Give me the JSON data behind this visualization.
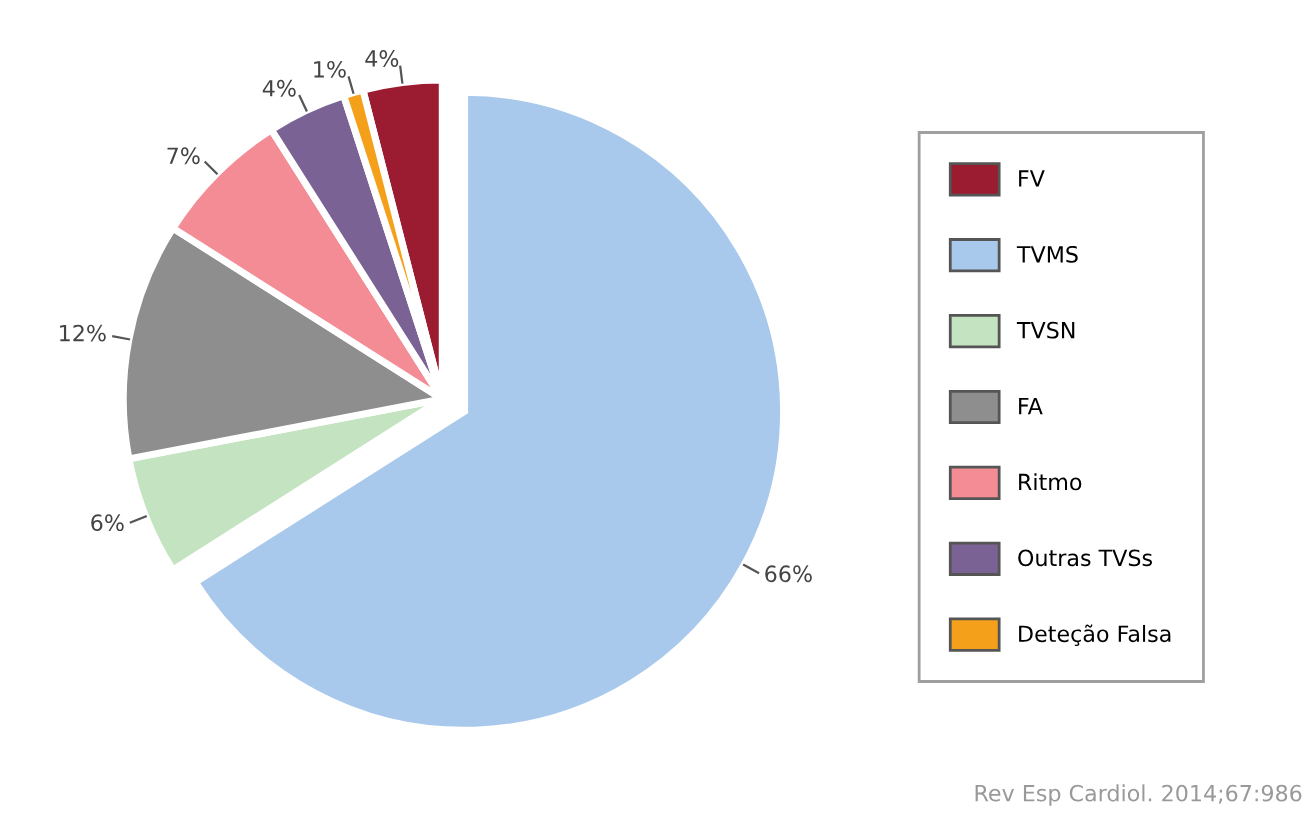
{
  "chart_data": {
    "type": "pie",
    "categories": [
      "FV",
      "TVMS",
      "TVSN",
      "FA",
      "Ritmo",
      "Outras TVSs",
      "Deteção Falsa"
    ],
    "values": [
      4,
      66,
      6,
      12,
      7,
      4,
      1
    ],
    "colors": [
      "#9b1b30",
      "#a9c9ec",
      "#c4e3c0",
      "#8e8e8e",
      "#f48c96",
      "#7a6294",
      "#f5a01a"
    ],
    "value_labels": [
      "4%",
      "66%",
      "6%",
      "12%",
      "7%",
      "4%",
      "1%"
    ],
    "legend": "right",
    "annotations": [
      "Rev Esp Cardiol. 2014;67:986"
    ]
  }
}
